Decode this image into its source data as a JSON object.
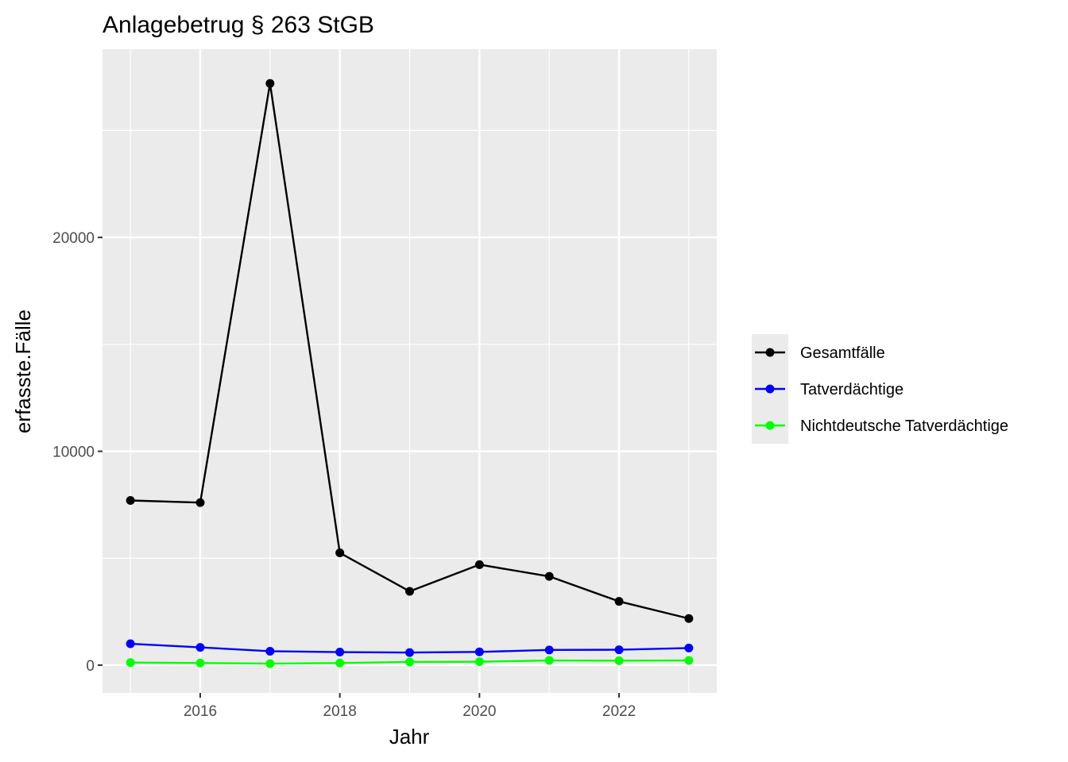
{
  "chart_data": {
    "type": "line",
    "title": "Anlagebetrug § 263 StGB",
    "xlabel": "Jahr",
    "ylabel": "erfasste.Fälle",
    "x": [
      2015,
      2016,
      2017,
      2018,
      2019,
      2020,
      2021,
      2022,
      2023
    ],
    "xlim": [
      2014.6,
      2023.4
    ],
    "ylim": [
      -1300,
      28800
    ],
    "x_ticks": [
      2016,
      2018,
      2020,
      2022
    ],
    "y_ticks": [
      0,
      10000,
      20000
    ],
    "x_tick_labels": [
      "2016",
      "2018",
      "2020",
      "2022"
    ],
    "y_tick_labels": [
      "0",
      "10000",
      "20000"
    ],
    "grid": true,
    "legend_position": "right",
    "series": [
      {
        "name": "Gesamtfälle",
        "color": "#000000",
        "values": [
          7700,
          7600,
          27200,
          5250,
          3450,
          4700,
          4150,
          2980,
          2180
        ]
      },
      {
        "name": "Tatverdächtige",
        "color": "#0000ff",
        "values": [
          1000,
          830,
          650,
          610,
          590,
          620,
          710,
          720,
          800
        ]
      },
      {
        "name": "Nichtdeutsche Tatverdächtige",
        "color": "#00ff00",
        "values": [
          120,
          100,
          70,
          100,
          150,
          160,
          220,
          210,
          220
        ]
      }
    ]
  }
}
